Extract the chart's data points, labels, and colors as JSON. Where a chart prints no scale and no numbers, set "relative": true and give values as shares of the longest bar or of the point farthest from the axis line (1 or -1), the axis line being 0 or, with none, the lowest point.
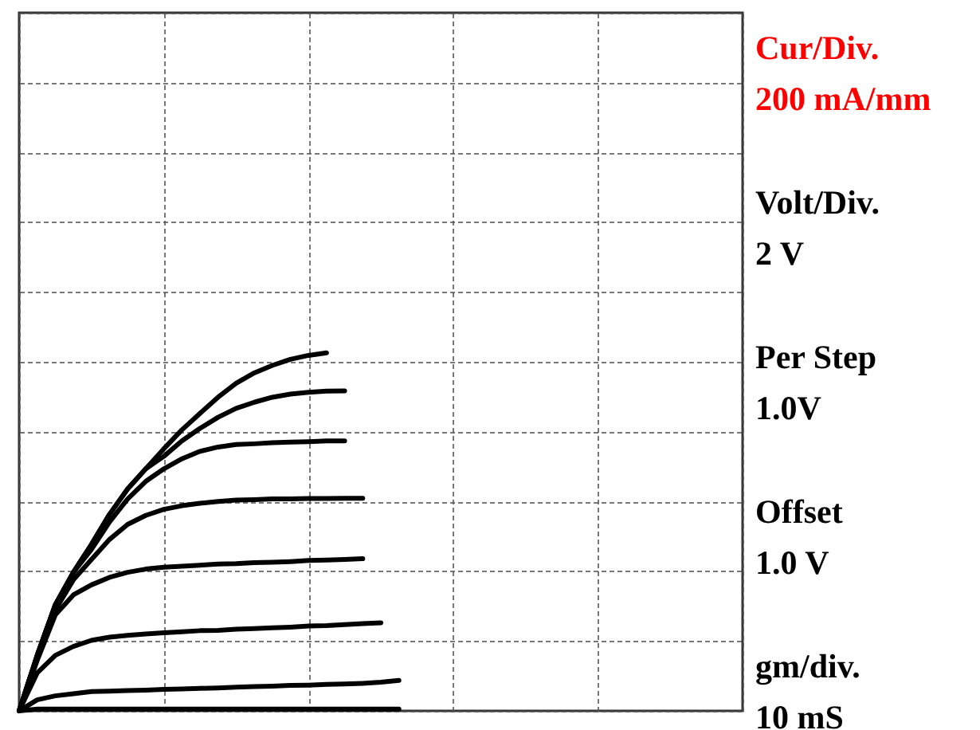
{
  "chart_data": {
    "type": "line",
    "relative": true,
    "grid": true,
    "categories": [
      null,
      null,
      null,
      null,
      null,
      null,
      null,
      null,
      null,
      null,
      null,
      null,
      null,
      null,
      null,
      null,
      null,
      null,
      null,
      null,
      null,
      null,
      null,
      null,
      null,
      null,
      null,
      null,
      null,
      null,
      null,
      null,
      null,
      null,
      null,
      null,
      null,
      null,
      null,
      null,
      null
    ],
    "series": [
      {
        "color": "#000000",
        "values": [
          0,
          0.155,
          0.296,
          0.387,
          0.465,
          0.549,
          0.62,
          0.676,
          0.732,
          0.785,
          0.831,
          0.876,
          0.915,
          0.944,
          0.965,
          0.982,
          0.993,
          1,
          null,
          null,
          null,
          null,
          null,
          null,
          null,
          null,
          null,
          null,
          null,
          null,
          null,
          null,
          null,
          null,
          null,
          null,
          null,
          null,
          null,
          null,
          null
        ]
      },
      {
        "color": "#000000",
        "values": [
          0,
          0.155,
          0.296,
          0.387,
          0.465,
          0.549,
          0.62,
          0.676,
          0.711,
          0.754,
          0.789,
          0.82,
          0.845,
          0.862,
          0.876,
          0.885,
          0.89,
          0.893,
          0.894,
          null,
          null,
          null,
          null,
          null,
          null,
          null,
          null,
          null,
          null,
          null,
          null,
          null,
          null,
          null,
          null,
          null,
          null,
          null,
          null,
          null,
          null
        ]
      },
      {
        "color": "#000000",
        "values": [
          0,
          0.155,
          0.296,
          0.387,
          0.451,
          0.528,
          0.592,
          0.641,
          0.676,
          0.704,
          0.725,
          0.737,
          0.744,
          0.746,
          0.749,
          0.751,
          0.752,
          0.754,
          0.754,
          null,
          null,
          null,
          null,
          null,
          null,
          null,
          null,
          null,
          null,
          null,
          null,
          null,
          null,
          null,
          null,
          null,
          null,
          null,
          null,
          null,
          null
        ]
      },
      {
        "color": "#000000",
        "values": [
          0,
          0.148,
          0.282,
          0.366,
          0.423,
          0.479,
          0.521,
          0.546,
          0.563,
          0.573,
          0.58,
          0.585,
          0.589,
          0.59,
          0.592,
          0.592,
          0.593,
          0.593,
          0.594,
          0.594,
          null,
          null,
          null,
          null,
          null,
          null,
          null,
          null,
          null,
          null,
          null,
          null,
          null,
          null,
          null,
          null,
          null,
          null,
          null,
          null,
          null
        ]
      },
      {
        "color": "#000000",
        "values": [
          0,
          0.141,
          0.268,
          0.324,
          0.352,
          0.373,
          0.387,
          0.396,
          0.401,
          0.404,
          0.407,
          0.41,
          0.411,
          0.414,
          0.415,
          0.417,
          0.42,
          0.421,
          0.423,
          0.425,
          null,
          null,
          null,
          null,
          null,
          null,
          null,
          null,
          null,
          null,
          null,
          null,
          null,
          null,
          null,
          null,
          null,
          null,
          null,
          null,
          null
        ]
      },
      {
        "color": "#000000",
        "values": [
          0,
          0.106,
          0.155,
          0.18,
          0.197,
          0.206,
          0.211,
          0.215,
          0.218,
          0.221,
          0.224,
          0.225,
          0.228,
          0.23,
          0.232,
          0.234,
          0.237,
          0.238,
          0.241,
          0.244,
          0.246,
          null,
          null,
          null,
          null,
          null,
          null,
          null,
          null,
          null,
          null,
          null,
          null,
          null,
          null,
          null,
          null,
          null,
          null,
          null,
          null
        ]
      },
      {
        "color": "#000000",
        "values": [
          0,
          0.031,
          0.042,
          0.048,
          0.054,
          0.055,
          0.057,
          0.058,
          0.06,
          0.061,
          0.063,
          0.064,
          0.066,
          0.068,
          0.069,
          0.071,
          0.072,
          0.074,
          0.075,
          0.077,
          0.08,
          0.085,
          null,
          null,
          null,
          null,
          null,
          null,
          null,
          null,
          null,
          null,
          null,
          null,
          null,
          null,
          null,
          null,
          null,
          null,
          null
        ]
      },
      {
        "color": "#000000",
        "values": [
          0,
          0.005,
          0.005,
          0.005,
          0.005,
          0.005,
          0.005,
          0.005,
          0.005,
          0.005,
          0.005,
          0.005,
          0.005,
          0.005,
          0.005,
          0.005,
          0.005,
          0.005,
          0.005,
          0.005,
          0.005,
          0.005,
          null,
          null,
          null,
          null,
          null,
          null,
          null,
          null,
          null,
          null,
          null,
          null,
          null,
          null,
          null,
          null,
          null,
          null,
          null
        ]
      }
    ],
    "annotations": [
      "Cur/Div.\n200 mA/mm",
      "Volt/Div.\n2 V",
      "Per Step\n1.0V",
      "Offset\n1.0 V",
      "gm/div.\n10 mS"
    ]
  }
}
